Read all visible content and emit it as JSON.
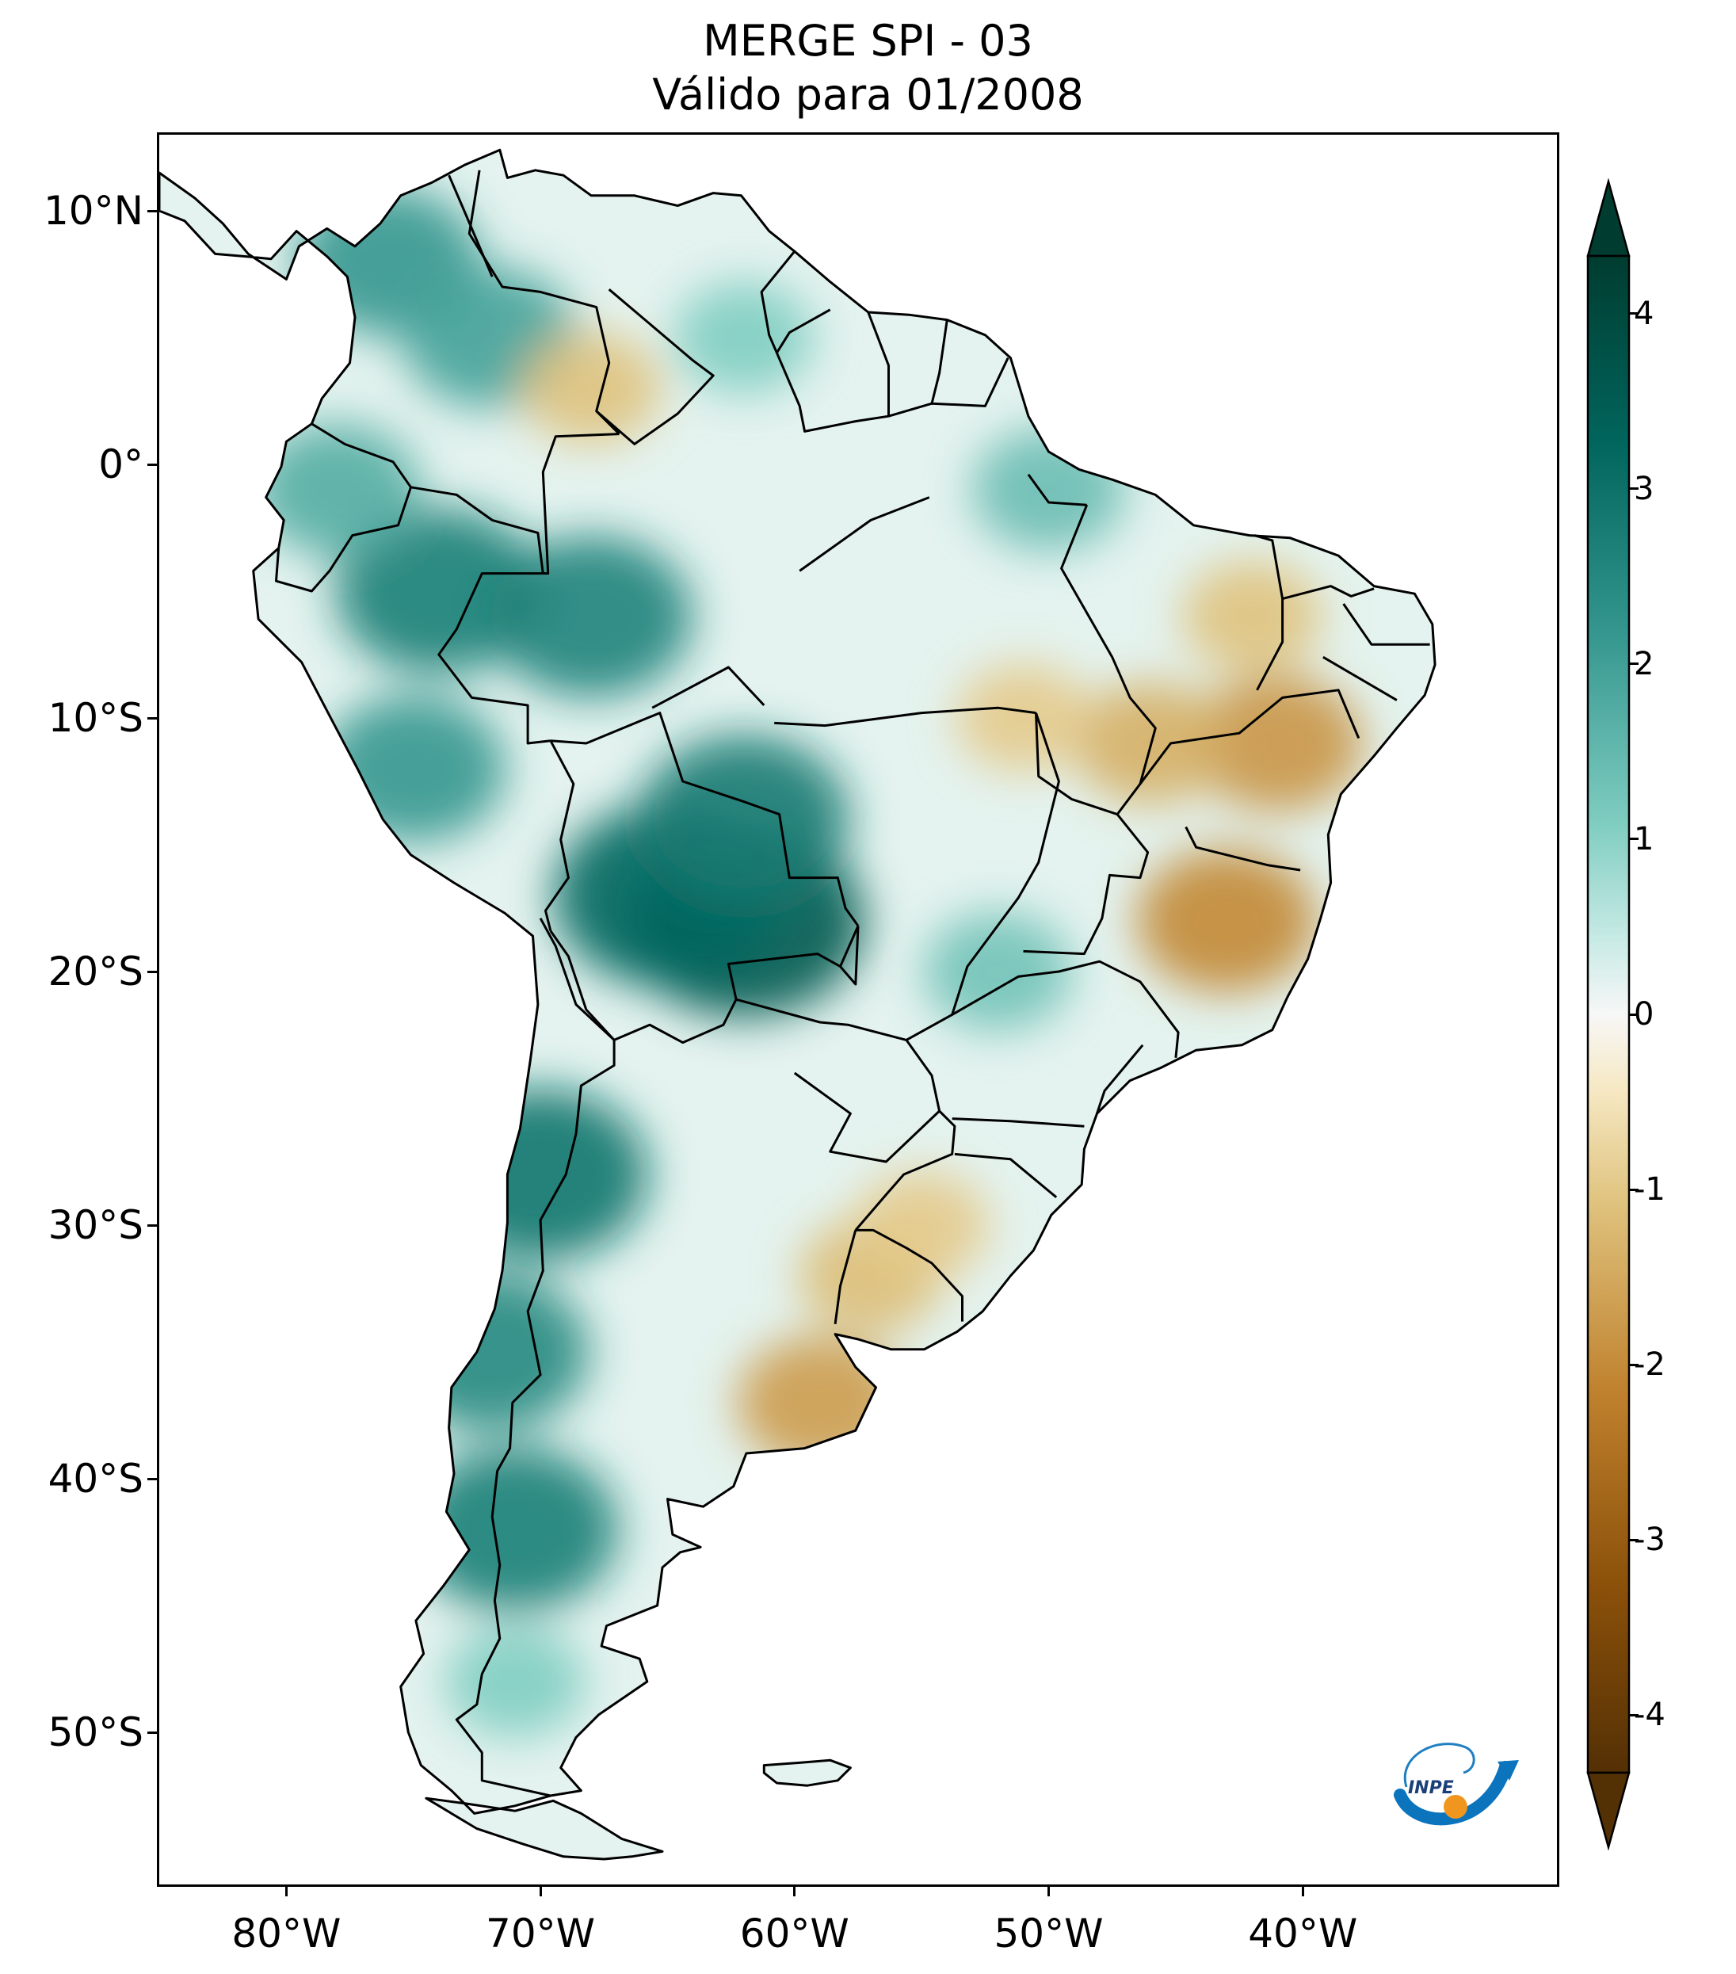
{
  "title": {
    "line1": "MERGE   SPI - 03",
    "line2": "Válido para 01/2008"
  },
  "map": {
    "extent": {
      "lon_min": -85,
      "lon_max": -30,
      "lat_min": -56,
      "lat_max": 13
    },
    "lat_ticks": [
      {
        "value": 10,
        "label": "10°N"
      },
      {
        "value": 0,
        "label": "0°"
      },
      {
        "value": -10,
        "label": "10°S"
      },
      {
        "value": -20,
        "label": "20°S"
      },
      {
        "value": -30,
        "label": "30°S"
      },
      {
        "value": -40,
        "label": "40°S"
      },
      {
        "value": -50,
        "label": "50°S"
      }
    ],
    "lon_ticks": [
      {
        "value": -80,
        "label": "80°W"
      },
      {
        "value": -70,
        "label": "70°W"
      },
      {
        "value": -60,
        "label": "60°W"
      },
      {
        "value": -50,
        "label": "50°W"
      },
      {
        "value": -40,
        "label": "40°W"
      }
    ],
    "spi_patches": [
      {
        "lon": -62,
        "lat": -18,
        "value": 3.3
      },
      {
        "lon": -65,
        "lat": -17,
        "value": 3.0
      },
      {
        "lon": -62,
        "lat": -14,
        "value": 2.6
      },
      {
        "lon": -68,
        "lat": -6,
        "value": 2.4
      },
      {
        "lon": -70,
        "lat": -28,
        "value": 2.7
      },
      {
        "lon": -72,
        "lat": -35,
        "value": 2.3
      },
      {
        "lon": -71,
        "lat": -42,
        "value": 2.5
      },
      {
        "lon": -74,
        "lat": -5,
        "value": 2.5
      },
      {
        "lon": -75,
        "lat": -12,
        "value": 2.0
      },
      {
        "lon": -76,
        "lat": 8,
        "value": 2.0
      },
      {
        "lon": -72,
        "lat": 5,
        "value": 1.8
      },
      {
        "lon": -52,
        "lat": -20,
        "value": 1.2
      },
      {
        "lon": -62,
        "lat": 5,
        "value": 1.0
      },
      {
        "lon": -50,
        "lat": -1,
        "value": 1.3
      },
      {
        "lon": -78,
        "lat": -1,
        "value": 1.6
      },
      {
        "lon": -71,
        "lat": -48,
        "value": 1.0
      },
      {
        "lon": -68,
        "lat": 3,
        "value": -1.0
      },
      {
        "lon": -41,
        "lat": -11,
        "value": -1.7
      },
      {
        "lon": -43,
        "lat": -18,
        "value": -1.9
      },
      {
        "lon": -46,
        "lat": -11,
        "value": -1.3
      },
      {
        "lon": -51,
        "lat": -10,
        "value": -0.9
      },
      {
        "lon": -59,
        "lat": -37,
        "value": -1.6
      },
      {
        "lon": -57,
        "lat": -32,
        "value": -1.1
      },
      {
        "lon": -55,
        "lat": -30,
        "value": -0.9
      },
      {
        "lon": -42,
        "lat": -6,
        "value": -1.0
      }
    ]
  },
  "colorbar": {
    "ticks": [
      {
        "value": 4,
        "label": "4"
      },
      {
        "value": 3,
        "label": "3"
      },
      {
        "value": 2,
        "label": "2"
      },
      {
        "value": 1,
        "label": "1"
      },
      {
        "value": 0,
        "label": "0"
      },
      {
        "value": -1,
        "label": "-1"
      },
      {
        "value": -2,
        "label": "-2"
      },
      {
        "value": -3,
        "label": "-3"
      },
      {
        "value": -4,
        "label": "-4"
      }
    ],
    "colors": {
      "max": "#003c30",
      "plus3": "#01665e",
      "plus2": "#35978f",
      "plus1": "#80cdc1",
      "plus05": "#c7eae5",
      "zero": "#f7f7f7",
      "minus05": "#f6e8c3",
      "minus1": "#dfc27d",
      "minus2": "#bf812d",
      "minus3": "#8c510a",
      "min": "#543005"
    }
  },
  "logo": {
    "text": "INPE"
  }
}
